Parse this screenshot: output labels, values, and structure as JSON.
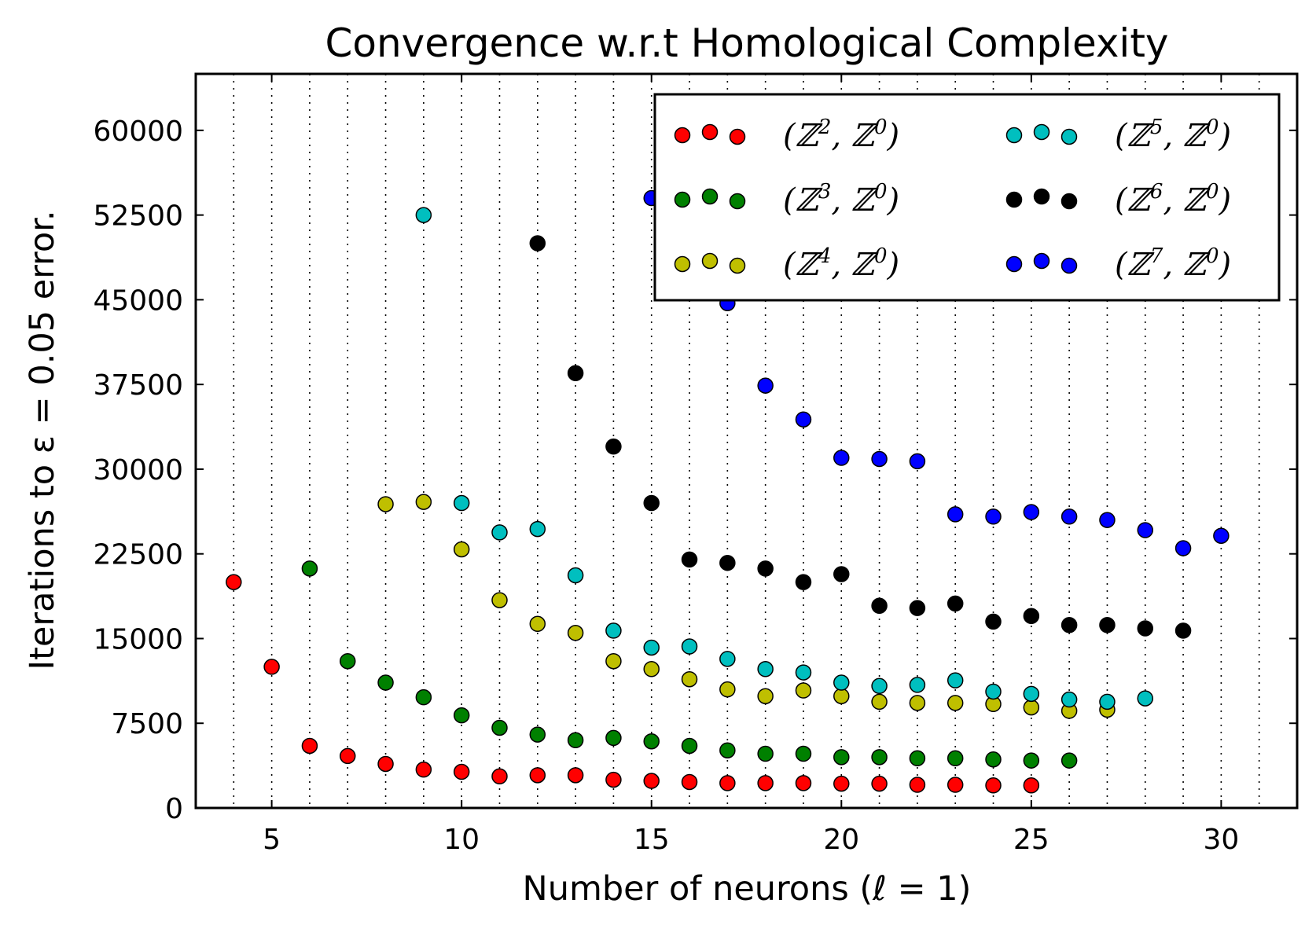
{
  "chart_data": {
    "type": "scatter",
    "title": "Convergence w.r.t Homological Complexity",
    "xlabel": "Number of neurons (ℓ = 1)",
    "ylabel": "Iterations to ε = 0.05 error.",
    "xlim": [
      3,
      32
    ],
    "ylim": [
      0,
      65000
    ],
    "xticks": [
      5,
      10,
      15,
      20,
      25,
      30
    ],
    "yticks": [
      0,
      7500,
      15000,
      22500,
      30000,
      37500,
      45000,
      52500,
      60000
    ],
    "grid": "vertical dotted lines at every integer x",
    "legend_position": "top-right",
    "series": [
      {
        "name": "(ℤ², ℤ⁰)",
        "base": "ℤ",
        "sup1": "2",
        "sup2": "0",
        "color": "#ff0000",
        "x": [
          4,
          5,
          6,
          7,
          8,
          9,
          10,
          11,
          12,
          13,
          14,
          15,
          16,
          17,
          18,
          19,
          20,
          21,
          22,
          23,
          24,
          25
        ],
        "y": [
          20000,
          12500,
          5500,
          4600,
          3900,
          3400,
          3200,
          2800,
          2900,
          2900,
          2500,
          2400,
          2300,
          2200,
          2200,
          2200,
          2150,
          2150,
          2050,
          2050,
          2000,
          2000
        ]
      },
      {
        "name": "(ℤ³, ℤ⁰)",
        "base": "ℤ",
        "sup1": "3",
        "sup2": "0",
        "color": "#008000",
        "x": [
          6,
          7,
          8,
          9,
          10,
          11,
          12,
          13,
          14,
          15,
          16,
          17,
          18,
          19,
          20,
          21,
          22,
          23,
          24,
          25,
          26
        ],
        "y": [
          21200,
          13000,
          11100,
          9800,
          8200,
          7100,
          6500,
          6000,
          6200,
          5900,
          5500,
          5100,
          4800,
          4800,
          4500,
          4500,
          4400,
          4400,
          4300,
          4200,
          4200
        ]
      },
      {
        "name": "(ℤ⁴, ℤ⁰)",
        "base": "ℤ",
        "sup1": "4",
        "sup2": "0",
        "color": "#bfbf00",
        "x": [
          8,
          9,
          10,
          11,
          12,
          13,
          14,
          15,
          16,
          17,
          18,
          19,
          20,
          21,
          22,
          23,
          24,
          25,
          26,
          27
        ],
        "y": [
          26900,
          27100,
          22900,
          18400,
          16300,
          15500,
          13000,
          12300,
          11400,
          10500,
          9900,
          10400,
          9900,
          9400,
          9300,
          9300,
          9200,
          8900,
          8600,
          8700
        ]
      },
      {
        "name": "(ℤ⁵, ℤ⁰)",
        "base": "ℤ",
        "sup1": "5",
        "sup2": "0",
        "color": "#00bfbf",
        "x": [
          9,
          10,
          11,
          12,
          13,
          14,
          15,
          16,
          17,
          18,
          19,
          20,
          21,
          22,
          23,
          24,
          25,
          26,
          27,
          28
        ],
        "y": [
          52500,
          27000,
          24400,
          24700,
          20600,
          15700,
          14200,
          14300,
          13200,
          12300,
          12000,
          11100,
          10800,
          10900,
          11300,
          10300,
          10100,
          9600,
          9400,
          9700
        ]
      },
      {
        "name": "(ℤ⁶, ℤ⁰)",
        "base": "ℤ",
        "sup1": "6",
        "sup2": "0",
        "color": "#000000",
        "x": [
          12,
          13,
          14,
          15,
          16,
          17,
          18,
          19,
          20,
          21,
          22,
          23,
          24,
          25,
          26,
          27,
          28,
          29
        ],
        "y": [
          50000,
          38500,
          32000,
          27000,
          22000,
          21700,
          21200,
          20000,
          20700,
          17900,
          17700,
          18100,
          16500,
          17000,
          16200,
          16200,
          15900,
          15700
        ]
      },
      {
        "name": "(ℤ⁷, ℤ⁰)",
        "base": "ℤ",
        "sup1": "7",
        "sup2": "0",
        "color": "#0000ff",
        "x": [
          15,
          17,
          18,
          19,
          20,
          21,
          22,
          23,
          24,
          25,
          26,
          27,
          28,
          29,
          30
        ],
        "y": [
          54000,
          44700,
          37400,
          34400,
          31000,
          30900,
          30700,
          26000,
          25800,
          26200,
          25800,
          25500,
          24600,
          23000,
          24100
        ]
      }
    ]
  }
}
